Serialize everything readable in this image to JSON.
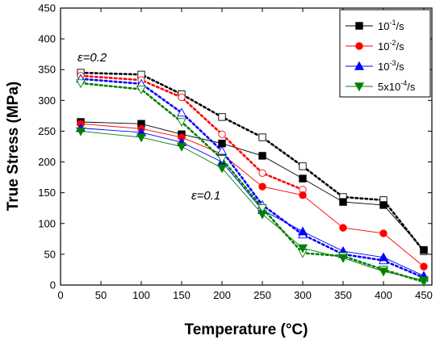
{
  "chart_data": {
    "type": "line",
    "xlabel": "Temperature (°C)",
    "ylabel": "True Stress (MPa)",
    "xlim": [
      0,
      460
    ],
    "ylim": [
      0,
      450
    ],
    "xticks": [
      "0",
      "50",
      "100",
      "150",
      "200",
      "250",
      "300",
      "350",
      "400",
      "450"
    ],
    "yticks": [
      "0",
      "50",
      "100",
      "150",
      "200",
      "250",
      "300",
      "350",
      "400",
      "450"
    ],
    "x": [
      25,
      100,
      150,
      200,
      250,
      300,
      350,
      400,
      450
    ],
    "legend_position": "top-right",
    "annotations": [
      {
        "text": "ε=0.2"
      },
      {
        "text": "ε=0.1"
      }
    ],
    "series": [
      {
        "name_base": "10",
        "name_exp": "-1",
        "name_suffix": "/s",
        "color": "#000000",
        "marker": "square",
        "strain_0_1": [
          265,
          262,
          245,
          230,
          210,
          173,
          135,
          130,
          57
        ],
        "strain_0_2": [
          345,
          342,
          310,
          273,
          240,
          193,
          143,
          138,
          55
        ]
      },
      {
        "name_base": "10",
        "name_exp": "-2",
        "name_suffix": "/s",
        "color": "#ff0000",
        "marker": "circle",
        "strain_0_1": [
          262,
          254,
          240,
          213,
          160,
          146,
          93,
          84,
          30
        ],
        "strain_0_2": [
          340,
          333,
          305,
          245,
          182,
          155,
          null,
          null,
          null
        ]
      },
      {
        "name_base": "10",
        "name_exp": "-3",
        "name_suffix": "/s",
        "color": "#0000ff",
        "marker": "triangle-up",
        "strain_0_1": [
          255,
          248,
          232,
          200,
          122,
          87,
          55,
          45,
          15
        ],
        "strain_0_2": [
          335,
          327,
          280,
          218,
          130,
          82,
          50,
          40,
          12
        ]
      },
      {
        "name_base": "5x10",
        "name_exp": "-4",
        "name_suffix": "/s",
        "color": "#008000",
        "marker": "triangle-down",
        "strain_0_1": [
          250,
          240,
          225,
          190,
          115,
          60,
          44,
          22,
          8
        ],
        "strain_0_2": [
          328,
          318,
          265,
          205,
          125,
          52,
          47,
          25,
          5
        ]
      }
    ]
  }
}
